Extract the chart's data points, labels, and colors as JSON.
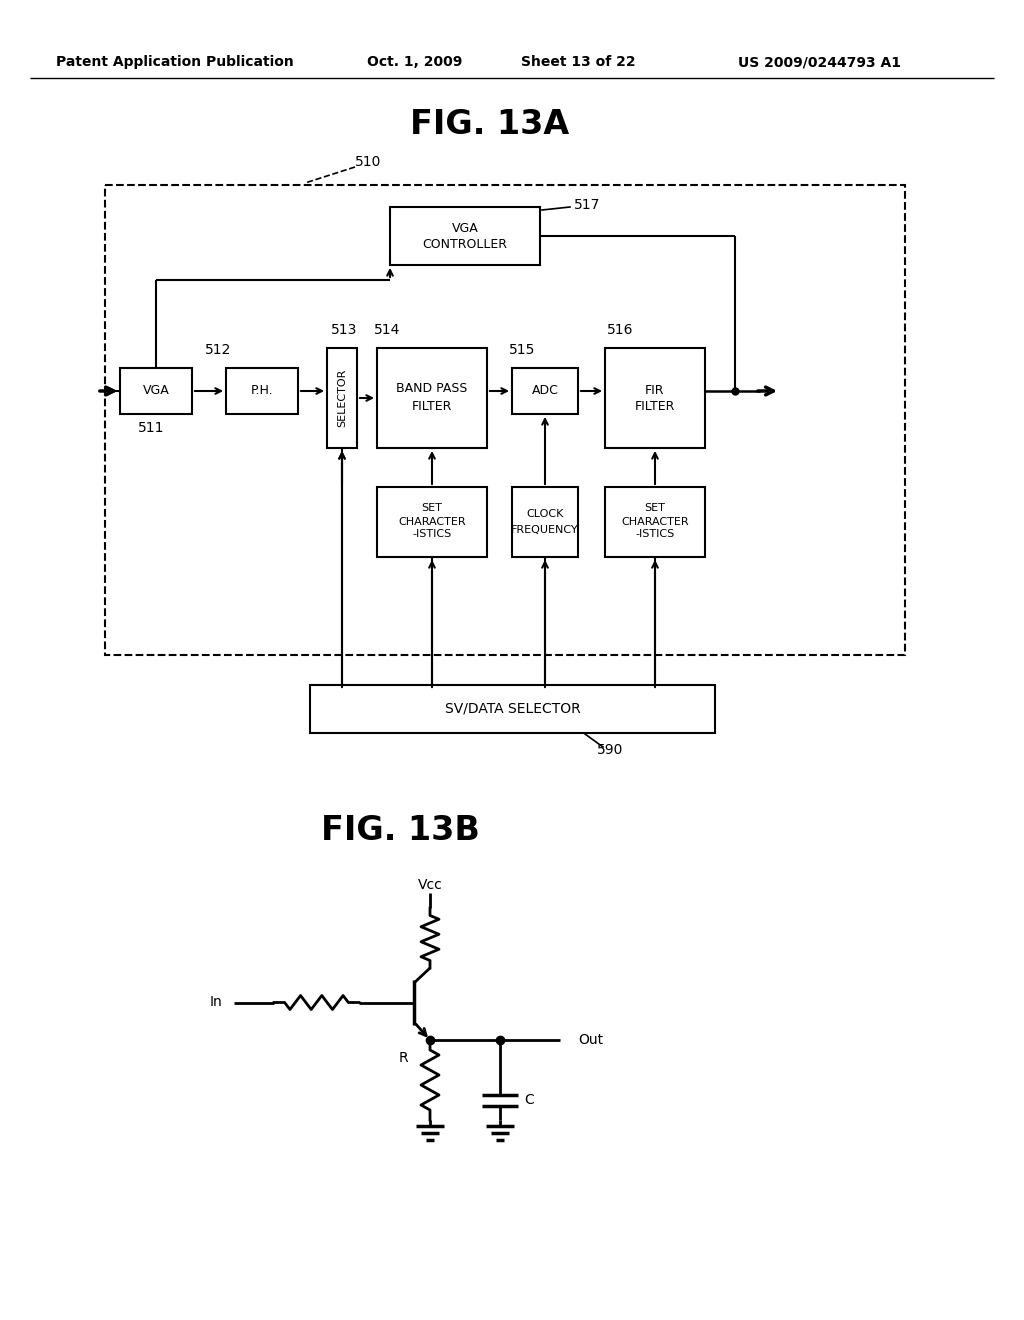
{
  "bg_color": "#ffffff",
  "header_text": "Patent Application Publication",
  "header_date": "Oct. 1, 2009",
  "header_sheet": "Sheet 13 of 22",
  "header_patent": "US 2009/0244793 A1",
  "fig13a_title": "FIG. 13A",
  "fig13b_title": "FIG. 13B",
  "line_color": "#000000"
}
